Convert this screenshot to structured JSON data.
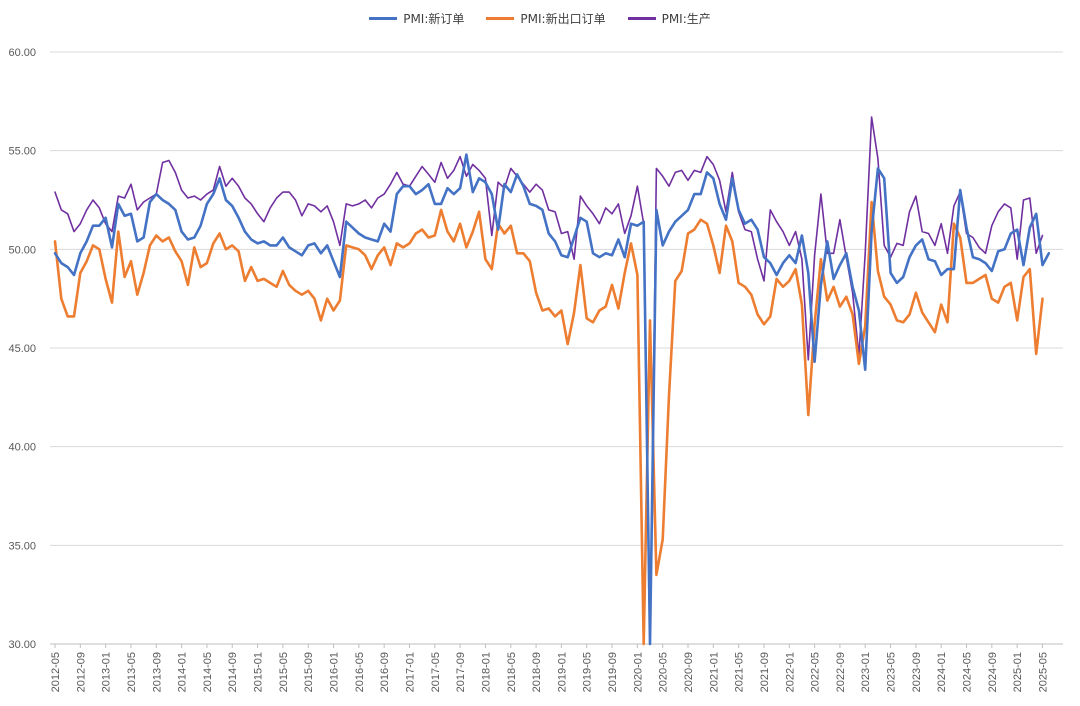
{
  "chart_data": {
    "type": "line",
    "title": "",
    "xlabel": "",
    "ylabel": "",
    "ylim": [
      30,
      60
    ],
    "yticks": [
      "30.00",
      "35.00",
      "40.00",
      "45.00",
      "50.00",
      "55.00",
      "60.00"
    ],
    "grid": "horizontal",
    "legend_position": "top",
    "x_tick_labels": [
      "2012-05",
      "2012-09",
      "2013-01",
      "2013-05",
      "2013-09",
      "2014-01",
      "2014-05",
      "2014-09",
      "2015-01",
      "2015-05",
      "2015-09",
      "2016-01",
      "2016-05",
      "2016-09",
      "2017-01",
      "2017-05",
      "2017-09",
      "2018-01",
      "2018-05",
      "2018-09",
      "2019-01",
      "2019-05",
      "2019-09",
      "2020-01",
      "2020-05",
      "2020-09",
      "2021-01",
      "2021-05",
      "2021-09",
      "2022-01",
      "2022-05",
      "2022-09",
      "2023-01",
      "2023-05",
      "2023-09",
      "2024-01",
      "2024-05",
      "2024-09",
      "2025-01",
      "2025-05"
    ],
    "x_start": "2012-05",
    "series": [
      {
        "name": "PMI:新订单",
        "color": "#4472C4",
        "values": [
          49.8,
          49.3,
          49.1,
          48.7,
          49.8,
          50.4,
          51.2,
          51.2,
          51.6,
          50.1,
          52.3,
          51.7,
          51.8,
          50.4,
          50.6,
          52.4,
          52.8,
          52.5,
          52.3,
          52.0,
          50.9,
          50.5,
          50.6,
          51.2,
          52.3,
          52.8,
          53.6,
          52.5,
          52.2,
          51.6,
          50.9,
          50.5,
          50.3,
          50.4,
          50.2,
          50.2,
          50.6,
          50.1,
          49.9,
          49.7,
          50.2,
          50.3,
          49.8,
          50.2,
          49.4,
          48.6,
          51.4,
          51.1,
          50.8,
          50.6,
          50.5,
          50.4,
          51.3,
          50.9,
          52.8,
          53.2,
          53.2,
          52.8,
          53.0,
          53.3,
          52.3,
          52.3,
          53.1,
          52.8,
          53.1,
          54.8,
          52.9,
          53.6,
          53.4,
          52.8,
          51.0,
          53.3,
          52.9,
          53.8,
          53.2,
          52.3,
          52.2,
          52.0,
          50.8,
          50.4,
          49.7,
          49.6,
          50.6,
          51.6,
          51.4,
          49.8,
          49.6,
          49.8,
          49.7,
          50.5,
          49.6,
          51.3,
          51.2,
          51.4,
          29.3,
          52.0,
          50.2,
          50.9,
          51.4,
          51.7,
          52.0,
          52.8,
          52.8,
          53.9,
          53.6,
          52.3,
          51.5,
          53.6,
          52.0,
          51.3,
          51.5,
          51.0,
          49.6,
          49.3,
          48.7,
          49.3,
          49.7,
          49.3,
          50.7,
          48.8,
          44.3,
          48.2,
          50.4,
          48.5,
          49.2,
          49.8,
          48.1,
          46.9,
          43.9,
          50.9,
          54.1,
          53.6,
          48.8,
          48.3,
          48.6,
          49.6,
          50.2,
          50.5,
          49.5,
          49.4,
          48.7,
          49.0,
          49.0,
          53.0,
          51.1,
          49.6,
          49.5,
          49.3,
          48.9,
          49.9,
          50.0,
          50.8,
          51.0,
          49.2,
          51.1,
          51.8,
          49.2,
          49.8
        ]
      },
      {
        "name": "PMI:新出口订单",
        "color": "#ED7D31",
        "values": [
          50.4,
          47.5,
          46.6,
          46.6,
          48.8,
          49.4,
          50.2,
          50.0,
          48.5,
          47.3,
          50.9,
          48.6,
          49.4,
          47.7,
          48.8,
          50.2,
          50.7,
          50.4,
          50.6,
          49.9,
          49.4,
          48.2,
          50.1,
          49.1,
          49.3,
          50.3,
          50.8,
          50.0,
          50.2,
          49.9,
          48.4,
          49.1,
          48.4,
          48.5,
          48.3,
          48.1,
          48.9,
          48.2,
          47.9,
          47.7,
          47.9,
          47.5,
          46.4,
          47.5,
          46.9,
          47.4,
          50.2,
          50.1,
          50.0,
          49.7,
          49.0,
          49.7,
          50.1,
          49.2,
          50.3,
          50.1,
          50.3,
          50.8,
          51.0,
          50.6,
          50.7,
          52.0,
          50.9,
          50.4,
          51.3,
          50.1,
          50.9,
          51.9,
          49.5,
          49.0,
          51.3,
          50.8,
          51.2,
          49.8,
          49.8,
          49.4,
          47.8,
          46.9,
          47.0,
          46.6,
          46.9,
          45.2,
          46.8,
          49.2,
          46.5,
          46.3,
          46.9,
          47.1,
          48.2,
          47.0,
          48.8,
          50.3,
          48.7,
          28.7,
          46.4,
          33.5,
          35.3,
          42.6,
          48.4,
          48.9,
          50.8,
          51.0,
          51.5,
          51.3,
          50.2,
          48.8,
          51.2,
          50.4,
          48.3,
          48.1,
          47.7,
          46.7,
          46.2,
          46.6,
          48.5,
          48.1,
          48.4,
          49.0,
          47.2,
          41.6,
          46.2,
          49.5,
          47.4,
          48.1,
          47.1,
          47.6,
          46.7,
          44.2,
          46.1,
          52.4,
          48.9,
          47.6,
          47.2,
          46.4,
          46.3,
          46.7,
          47.8,
          46.8,
          46.3,
          45.8,
          47.2,
          46.3,
          51.3,
          50.6,
          48.3,
          48.3,
          48.5,
          48.7,
          47.5,
          47.3,
          48.1,
          48.3,
          46.4,
          48.6,
          49.0,
          44.7,
          47.5
        ]
      },
      {
        "name": "PMI:生产",
        "color": "#7030A0",
        "values": [
          52.9,
          52.0,
          51.8,
          50.9,
          51.3,
          52.0,
          52.5,
          52.1,
          51.3,
          50.9,
          52.7,
          52.6,
          53.3,
          52.0,
          52.4,
          52.6,
          52.8,
          54.4,
          54.5,
          53.9,
          53.0,
          52.6,
          52.7,
          52.5,
          52.8,
          53.0,
          54.2,
          53.2,
          53.6,
          53.2,
          52.6,
          52.3,
          51.8,
          51.4,
          52.1,
          52.6,
          52.9,
          52.9,
          52.5,
          51.7,
          52.3,
          52.2,
          51.9,
          52.2,
          51.4,
          50.2,
          52.3,
          52.2,
          52.3,
          52.5,
          52.1,
          52.6,
          52.8,
          53.3,
          53.9,
          53.3,
          53.2,
          53.7,
          54.2,
          53.8,
          53.4,
          54.4,
          53.6,
          54.0,
          54.7,
          53.7,
          54.3,
          54.0,
          53.6,
          50.7,
          53.4,
          53.1,
          54.1,
          53.7,
          53.3,
          52.9,
          53.3,
          53.0,
          52.0,
          51.9,
          50.8,
          50.9,
          49.5,
          52.7,
          52.2,
          51.8,
          51.3,
          52.1,
          51.8,
          52.3,
          50.8,
          51.7,
          53.2,
          51.3,
          27.8,
          54.1,
          53.7,
          53.2,
          53.9,
          54.0,
          53.5,
          54.0,
          53.9,
          54.7,
          54.3,
          53.5,
          51.9,
          53.9,
          51.9,
          51.0,
          50.9,
          49.5,
          48.4,
          52.0,
          51.4,
          50.9,
          50.2,
          50.9,
          49.5,
          44.4,
          49.7,
          52.8,
          49.8,
          49.8,
          51.5,
          49.6,
          47.8,
          44.6,
          49.8,
          56.7,
          54.6,
          50.2,
          49.6,
          50.3,
          50.2,
          51.9,
          52.7,
          50.9,
          50.8,
          50.2,
          51.3,
          49.8,
          52.2,
          52.9,
          50.8,
          50.6,
          50.1,
          49.8,
          51.2,
          51.9,
          52.3,
          52.1,
          49.5,
          52.5,
          52.6,
          49.8,
          50.7
        ]
      }
    ]
  }
}
